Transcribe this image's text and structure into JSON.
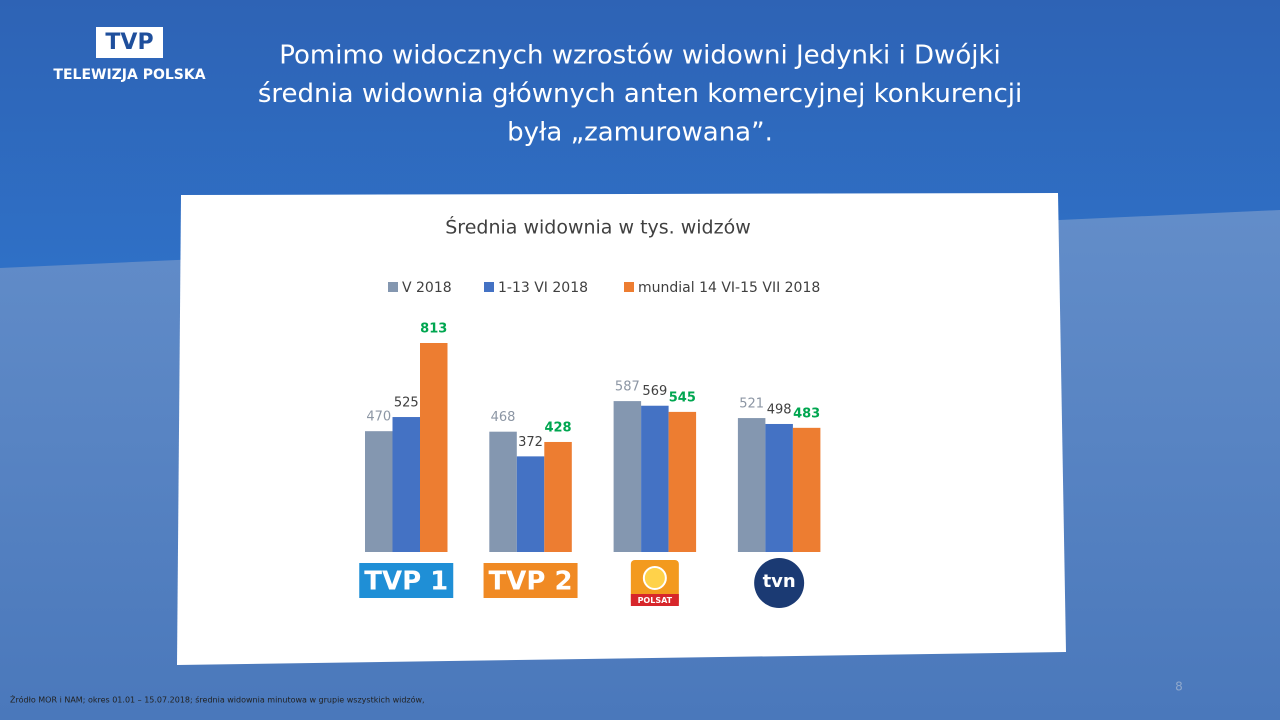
{
  "slide": {
    "logo": "TVP",
    "org": "TELEWIZJA POLSKA",
    "title_lines": [
      "Pomimo widocznych wzrostów widowni Jedynki i Dwójki",
      "średnia widownia głównych anten komercyjnej konkurencji",
      "była „zamurowana”."
    ],
    "source": "Źródło MOR i NAM; okres 01.01 – 15.07.2018; średnia widownia minutowa w grupie wszystkich widzów,",
    "page_number": 8
  },
  "chart_data": {
    "type": "bar",
    "title": "Średnia widownia w tys. widzów",
    "categories": [
      "TVP 1",
      "TVP 2",
      "POLSAT",
      "tvn"
    ],
    "series": [
      {
        "name": "V 2018",
        "color": "#8497b0",
        "label_color": "#8c96a4",
        "values": [
          470,
          468,
          587,
          521
        ]
      },
      {
        "name": "1-13 VI 2018",
        "color": "#4472c4",
        "label_color": "#404040",
        "values": [
          525,
          372,
          569,
          498
        ]
      },
      {
        "name": "mundial 14 VI-15 VII 2018",
        "color": "#ed7d31",
        "label_color": "#00a650",
        "values": [
          813,
          428,
          545,
          483
        ]
      }
    ]
  }
}
